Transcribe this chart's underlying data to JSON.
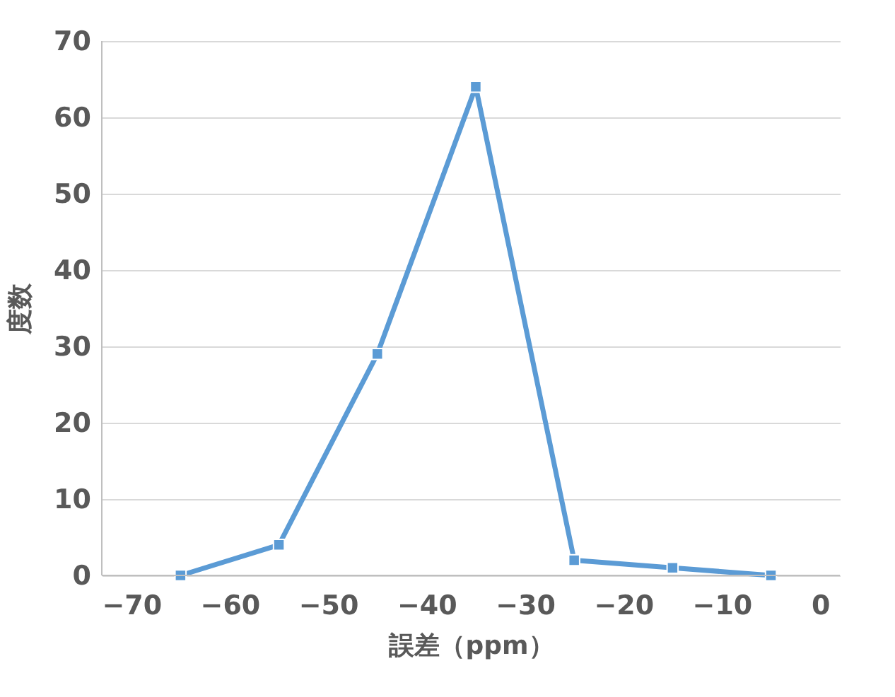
{
  "chart_data": {
    "type": "line",
    "xlabel": "誤差（ppm）",
    "ylabel": "度数",
    "x": [
      -65,
      -55,
      -45,
      -35,
      -25,
      -15,
      -5
    ],
    "series": [
      {
        "color": "#5b9bd5",
        "values": [
          0,
          4,
          29,
          64,
          2,
          1,
          0
        ]
      }
    ],
    "xlim": [
      -73,
      2
    ],
    "xticks": [
      -70,
      -60,
      -50,
      -40,
      -30,
      -20,
      -10,
      0
    ],
    "ylim": [
      0,
      70
    ],
    "yticks": [
      0,
      10,
      20,
      30,
      40,
      50,
      60,
      70
    ],
    "grid": "y",
    "marker": "square",
    "line_style": "solid"
  }
}
